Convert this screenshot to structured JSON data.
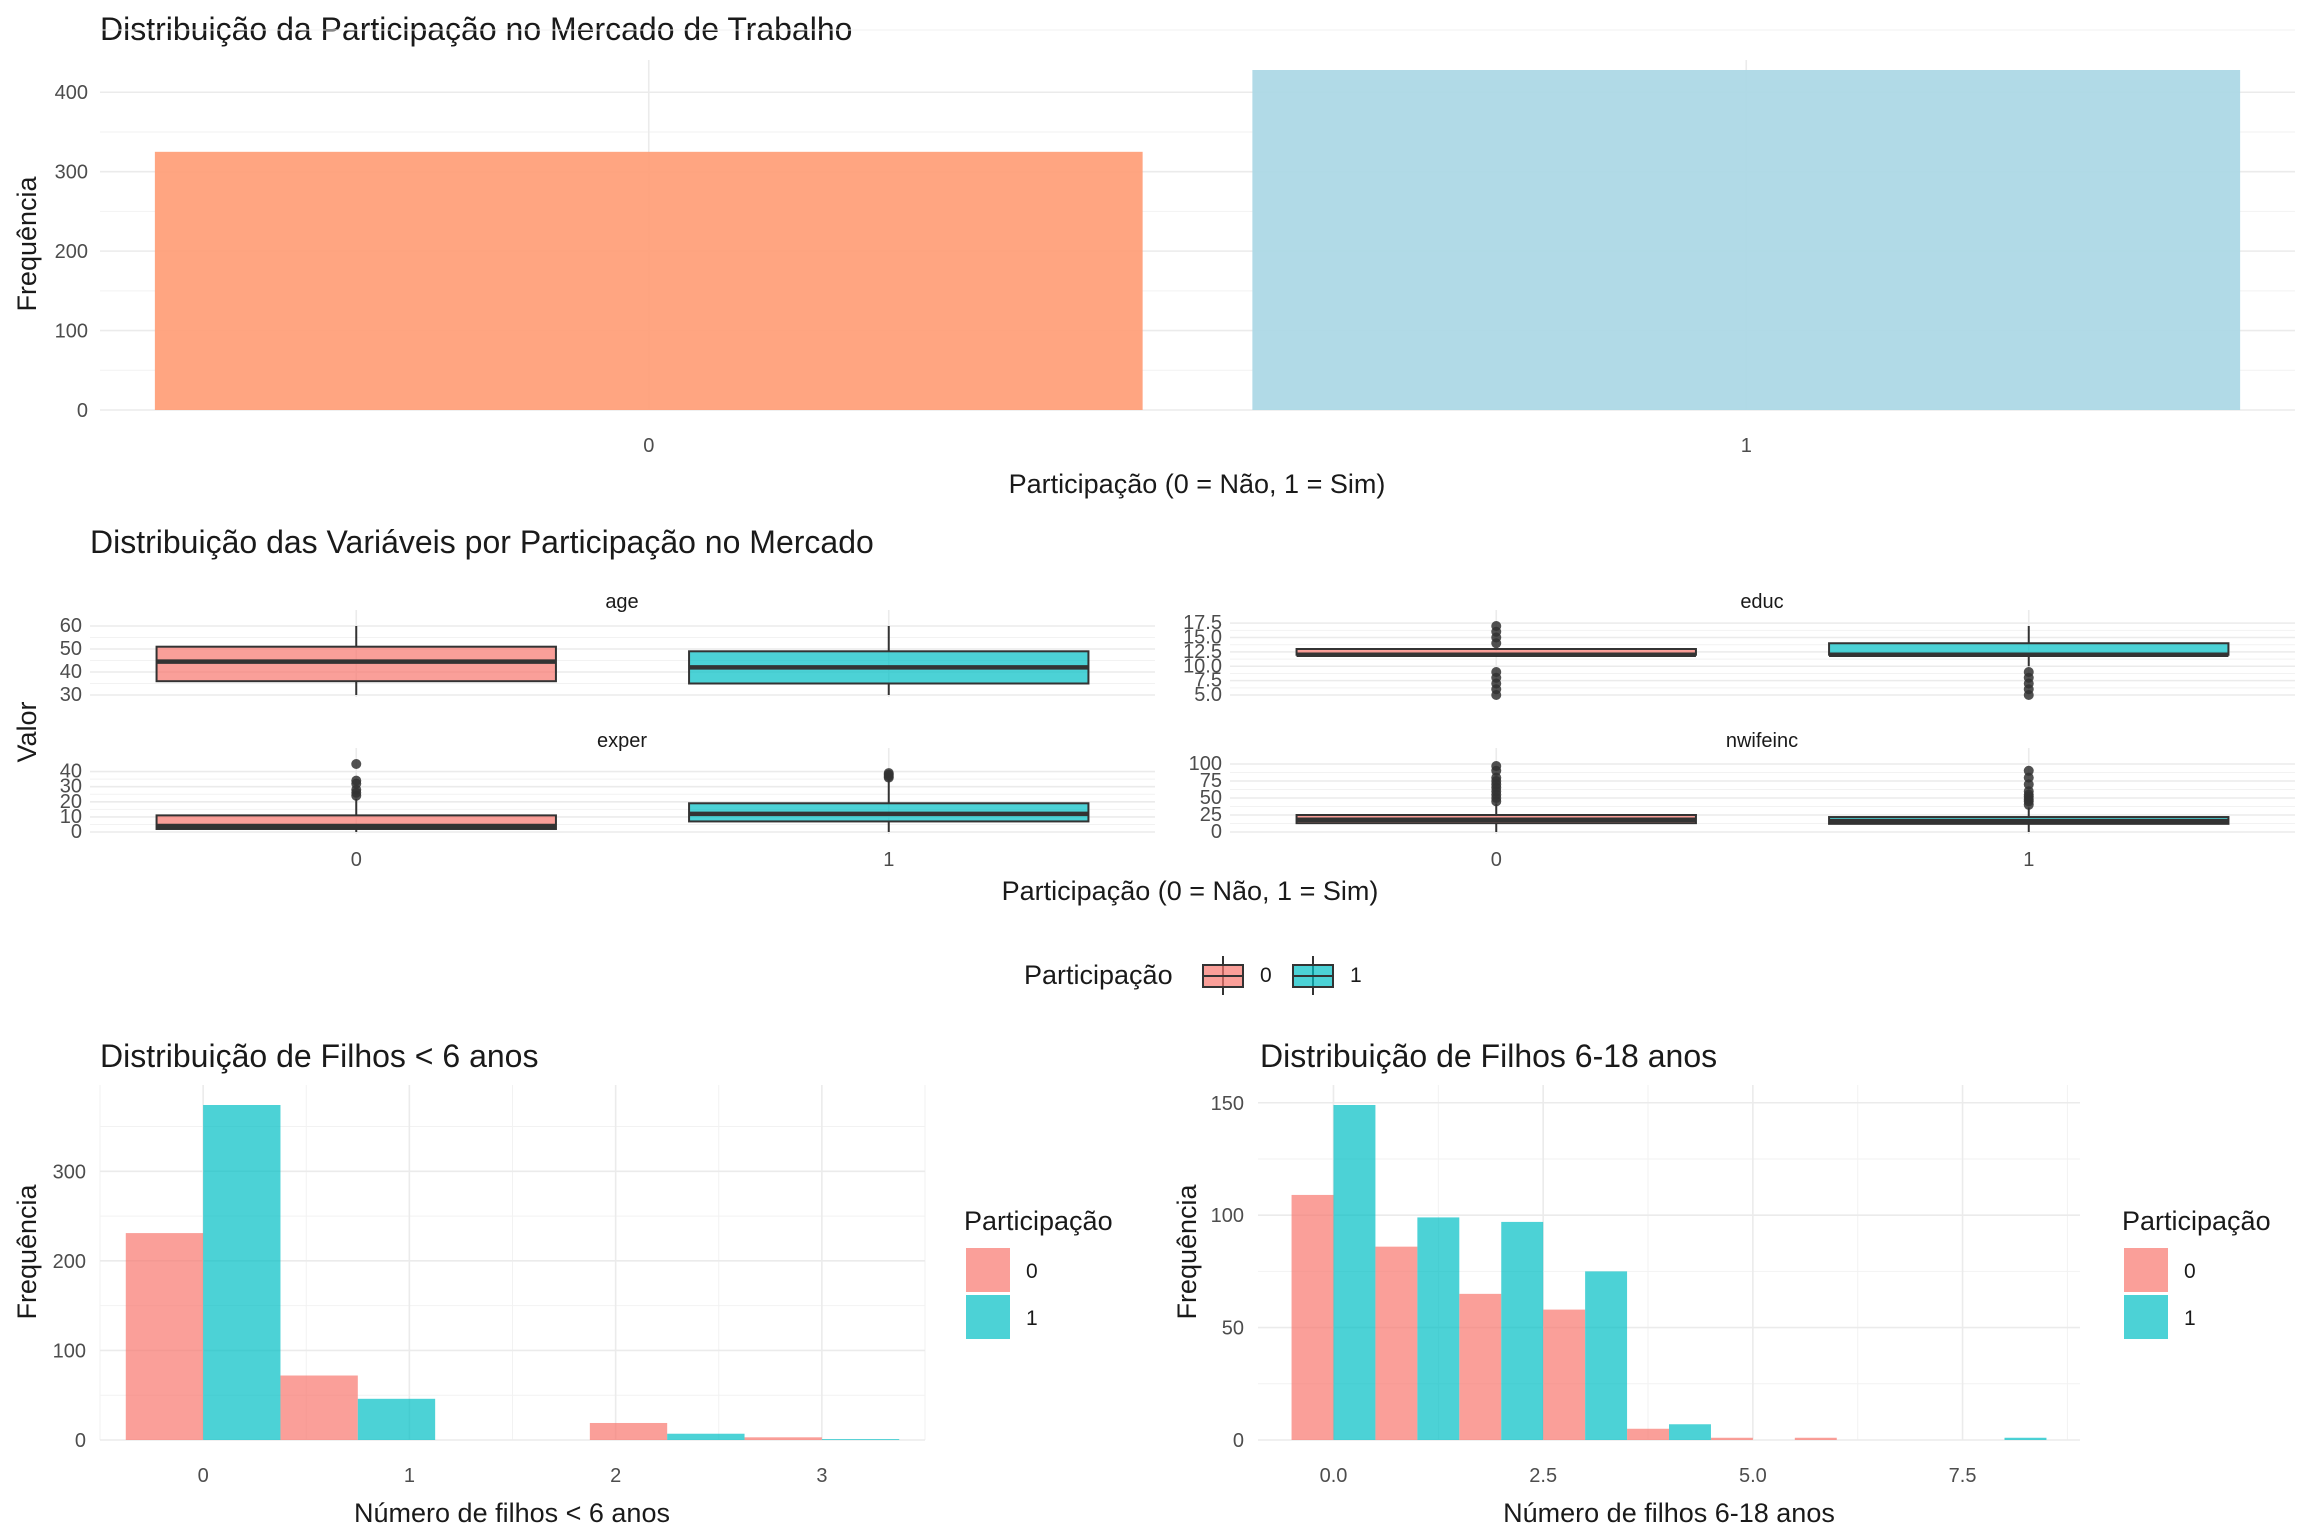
{
  "colors": {
    "bar0": "#FFA07A",
    "bar1": "#ADD8E6",
    "group0": "#F8766D",
    "group1": "#00BFC4",
    "box_line": "#333333"
  },
  "chart_data": [
    {
      "id": "participation",
      "type": "bar",
      "title": "Distribuição da Participação no Mercado de Trabalho",
      "xlabel": "Participação (0 = Não, 1 = Sim)",
      "ylabel": "Frequência",
      "categories": [
        "0",
        "1"
      ],
      "values": [
        325,
        428
      ],
      "ylim": [
        0,
        428
      ],
      "yticks": [
        0,
        100,
        200,
        300,
        400
      ],
      "grid": true
    },
    {
      "id": "boxplots",
      "type": "box",
      "title": "Distribuição das Variáveis por Participação no Mercado",
      "xlabel": "Participação (0 = Não, 1 = Sim)",
      "ylabel": "Valor",
      "categories": [
        "0",
        "1"
      ],
      "legend": {
        "title": "Participação",
        "labels": [
          "0",
          "1"
        ],
        "position": "bottom"
      },
      "panels": [
        {
          "name": "age",
          "ylim": [
            30,
            60
          ],
          "yticks": [
            30,
            40,
            50,
            60
          ],
          "boxes": [
            {
              "group": "0",
              "min": 30,
              "q1": 36,
              "median": 44.5,
              "q3": 51,
              "max": 60,
              "outliers": []
            },
            {
              "group": "1",
              "min": 30,
              "q1": 35,
              "median": 42,
              "q3": 49,
              "max": 60,
              "outliers": []
            }
          ]
        },
        {
          "name": "educ",
          "ylim": [
            5,
            17
          ],
          "yticks": [
            5.0,
            7.5,
            10.0,
            12.5,
            15.0,
            17.5
          ],
          "boxes": [
            {
              "group": "0",
              "min": 12,
              "q1": 12,
              "median": 12,
              "q3": 13,
              "max": 13,
              "outliers": [
                5,
                6,
                7,
                8,
                9,
                14,
                15,
                16,
                17
              ]
            },
            {
              "group": "1",
              "min": 10,
              "q1": 12,
              "median": 12,
              "q3": 14,
              "max": 17,
              "outliers": [
                5,
                6,
                7,
                8,
                9
              ]
            }
          ]
        },
        {
          "name": "exper",
          "ylim": [
            0,
            45
          ],
          "yticks": [
            0,
            10,
            20,
            30,
            40
          ],
          "boxes": [
            {
              "group": "0",
              "min": 0,
              "q1": 2,
              "median": 4,
              "q3": 11,
              "max": 22,
              "outliers": [
                24,
                26,
                28,
                32,
                34,
                45
              ]
            },
            {
              "group": "1",
              "min": 0,
              "q1": 7,
              "median": 12,
              "q3": 19,
              "max": 35,
              "outliers": [
                36,
                37,
                38,
                39
              ]
            }
          ]
        },
        {
          "name": "nwifeinc",
          "ylim": [
            0,
            100
          ],
          "yticks": [
            0,
            25,
            50,
            75,
            100
          ],
          "boxes": [
            {
              "group": "0",
              "min": 0,
              "q1": 13,
              "median": 18,
              "q3": 25,
              "max": 42,
              "outliers": [
                45,
                50,
                55,
                60,
                65,
                70,
                75,
                80,
                90,
                97
              ]
            },
            {
              "group": "1",
              "min": 0,
              "q1": 12,
              "median": 16,
              "q3": 22,
              "max": 36,
              "outliers": [
                40,
                45,
                48,
                52,
                55,
                60,
                70,
                80,
                90
              ]
            }
          ]
        }
      ]
    },
    {
      "id": "kidslt6",
      "type": "histogram",
      "title": "Distribuição de Filhos < 6 anos",
      "xlabel": "Número de filhos < 6 anos",
      "ylabel": "Frequência",
      "bins": [
        -0.375,
        0.375,
        1.125,
        1.875,
        2.625,
        3.375
      ],
      "series": [
        {
          "name": "0",
          "values": [
            231,
            72,
            0,
            19,
            3
          ]
        },
        {
          "name": "1",
          "values": [
            374,
            46,
            0,
            7,
            1
          ]
        }
      ],
      "xlim": [
        -0.5,
        3.5
      ],
      "xticks": [
        0,
        1,
        2,
        3
      ],
      "ylim": [
        0,
        374
      ],
      "yticks": [
        0,
        100,
        200,
        300
      ],
      "legend": {
        "title": "Participação",
        "labels": [
          "0",
          "1"
        ],
        "position": "right"
      }
    },
    {
      "id": "kidsge6",
      "type": "histogram",
      "title": "Distribuição de Filhos 6-18 anos",
      "xlabel": "Número de filhos 6-18 anos",
      "ylabel": "Frequência",
      "bins": [
        -0.5,
        0.5,
        1.5,
        2.5,
        3.5,
        4.5,
        5.5,
        6.5,
        7.5,
        8.5
      ],
      "series": [
        {
          "name": "0",
          "values": [
            109,
            86,
            65,
            58,
            5,
            1,
            1,
            0,
            0
          ]
        },
        {
          "name": "1",
          "values": [
            149,
            99,
            97,
            75,
            7,
            0,
            0,
            0,
            1
          ]
        }
      ],
      "xlim": [
        -0.9,
        8.9
      ],
      "xticks": [
        0.0,
        2.5,
        5.0,
        7.5
      ],
      "ylim": [
        0,
        149
      ],
      "yticks": [
        0,
        50,
        100,
        150
      ],
      "legend": {
        "title": "Participação",
        "labels": [
          "0",
          "1"
        ],
        "position": "right"
      }
    }
  ]
}
